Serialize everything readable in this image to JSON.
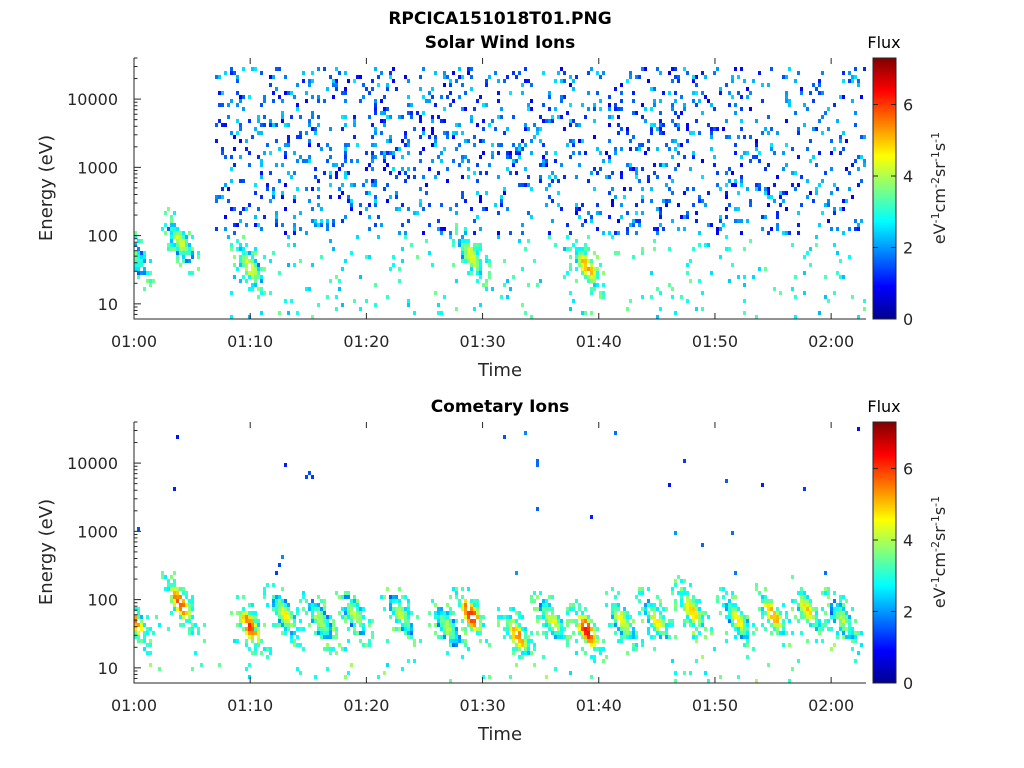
{
  "figure_title": "RPCICA151018T01.PNG",
  "colorbar": {
    "label_title": "Flux",
    "unit_parts": [
      "eV",
      "-1",
      "cm",
      "-2",
      "sr",
      "-1",
      "s",
      "-1"
    ],
    "ticks": [
      "0",
      "2",
      "4",
      "6"
    ],
    "range": [
      0,
      7.3
    ],
    "colormap": "jet"
  },
  "chart_data": [
    {
      "type": "heatmap",
      "title": "Solar Wind Ions",
      "xlabel": "Time",
      "ylabel": "Energy (eV)",
      "y_scale": "log",
      "ylim": [
        6,
        40000
      ],
      "xlim_minutes": [
        0,
        63
      ],
      "x_ticks": [
        "01:00",
        "01:10",
        "01:20",
        "01:30",
        "01:40",
        "01:50",
        "02:00"
      ],
      "y_ticks": [
        "10",
        "100",
        "1000",
        "10000"
      ],
      "colorbar_label": "Flux",
      "dense_region_minutes": [
        7,
        63
      ],
      "dense_energy_range_eV": [
        100,
        30000
      ],
      "hot_spots": [
        {
          "time": "01:00",
          "energy_eV": 50,
          "flux": 3.5
        },
        {
          "time": "01:04",
          "energy_eV": 80,
          "flux": 4.2
        },
        {
          "time": "01:10",
          "energy_eV": 35,
          "flux": 4.5
        },
        {
          "time": "01:29",
          "energy_eV": 50,
          "flux": 4.5
        },
        {
          "time": "01:39",
          "energy_eV": 35,
          "flux": 5.2
        }
      ]
    },
    {
      "type": "heatmap",
      "title": "Cometary Ions",
      "xlabel": "Time",
      "ylabel": "Energy (eV)",
      "y_scale": "log",
      "ylim": [
        6,
        40000
      ],
      "xlim_minutes": [
        0,
        63
      ],
      "x_ticks": [
        "01:00",
        "01:10",
        "01:20",
        "01:30",
        "01:40",
        "01:50",
        "02:00"
      ],
      "y_ticks": [
        "10",
        "100",
        "1000",
        "10000"
      ],
      "colorbar_label": "Flux",
      "hot_spots": [
        {
          "time": "01:00",
          "energy_eV": 50,
          "flux": 5.5
        },
        {
          "time": "01:04",
          "energy_eV": 90,
          "flux": 6.0
        },
        {
          "time": "01:10",
          "energy_eV": 40,
          "flux": 6.0
        },
        {
          "time": "01:13",
          "energy_eV": 60,
          "flux": 4.5
        },
        {
          "time": "01:16",
          "energy_eV": 50,
          "flux": 4.0
        },
        {
          "time": "01:19",
          "energy_eV": 60,
          "flux": 4.2
        },
        {
          "time": "01:23",
          "energy_eV": 60,
          "flux": 4.0
        },
        {
          "time": "01:27",
          "energy_eV": 40,
          "flux": 4.0
        },
        {
          "time": "01:29",
          "energy_eV": 60,
          "flux": 6.3
        },
        {
          "time": "01:33",
          "energy_eV": 30,
          "flux": 5.5
        },
        {
          "time": "01:36",
          "energy_eV": 50,
          "flux": 4.5
        },
        {
          "time": "01:39",
          "energy_eV": 35,
          "flux": 6.3
        },
        {
          "time": "01:42",
          "energy_eV": 50,
          "flux": 4.5
        },
        {
          "time": "01:45",
          "energy_eV": 50,
          "flux": 4.5
        },
        {
          "time": "01:48",
          "energy_eV": 70,
          "flux": 5.0
        },
        {
          "time": "01:52",
          "energy_eV": 50,
          "flux": 4.5
        },
        {
          "time": "01:55",
          "energy_eV": 60,
          "flux": 5.3
        },
        {
          "time": "01:58",
          "energy_eV": 70,
          "flux": 4.8
        },
        {
          "time": "02:01",
          "energy_eV": 50,
          "flux": 4.0
        }
      ]
    }
  ]
}
